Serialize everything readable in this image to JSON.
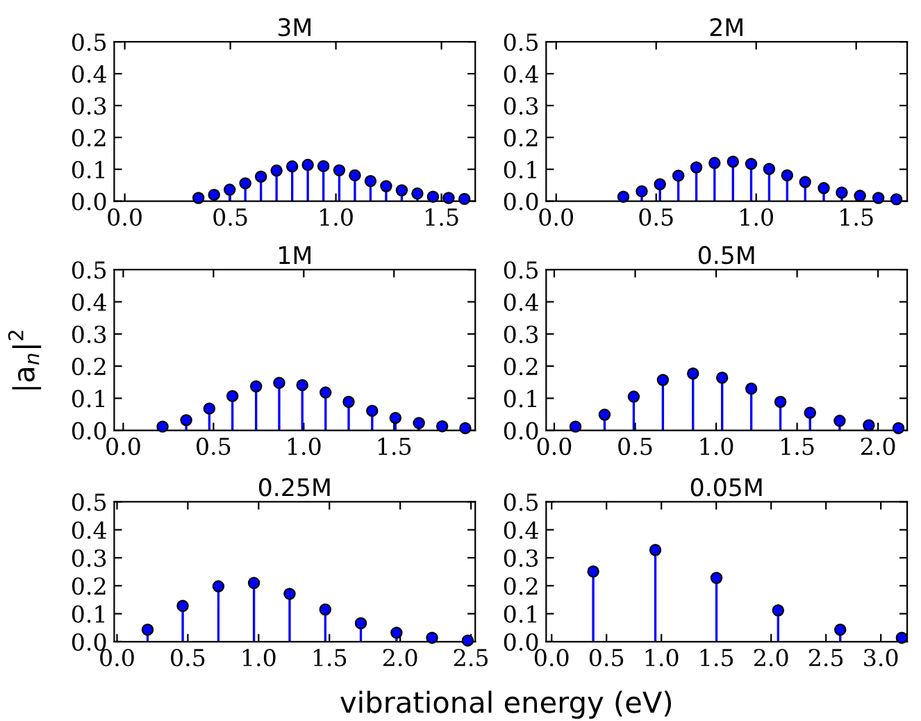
{
  "chart_data": [
    {
      "type": "lollipop",
      "title": "3M",
      "marker": "circle",
      "color": "#0000ff",
      "xlim": [
        -0.05,
        1.66
      ],
      "ylim": [
        0,
        0.5
      ],
      "xticks": [
        {
          "value": 0,
          "label": "0.0"
        },
        {
          "value": 0.5,
          "label": "0.5"
        },
        {
          "value": 1,
          "label": "1.0"
        },
        {
          "value": 1.5,
          "label": "1.5"
        }
      ],
      "yticks": [
        {
          "value": 0,
          "label": "0.0"
        },
        {
          "value": 0.1,
          "label": "0.1"
        },
        {
          "value": 0.2,
          "label": "0.2"
        },
        {
          "value": 0.3,
          "label": "0.3"
        },
        {
          "value": 0.4,
          "label": "0.4"
        },
        {
          "value": 0.5,
          "label": "0.5"
        }
      ],
      "x": [
        0.349,
        0.423,
        0.497,
        0.571,
        0.645,
        0.719,
        0.793,
        0.867,
        0.941,
        1.016,
        1.09,
        1.164,
        1.238,
        1.312,
        1.386,
        1.46,
        1.534,
        1.609
      ],
      "values": [
        0.01,
        0.02,
        0.036,
        0.056,
        0.077,
        0.096,
        0.109,
        0.114,
        0.11,
        0.097,
        0.081,
        0.063,
        0.047,
        0.034,
        0.024,
        0.014,
        0.01,
        0.007
      ]
    },
    {
      "type": "lollipop",
      "title": "2M",
      "marker": "circle",
      "color": "#0000ff",
      "xlim": [
        -0.05,
        1.755
      ],
      "ylim": [
        0,
        0.5
      ],
      "xticks": [
        {
          "value": 0,
          "label": "0.0"
        },
        {
          "value": 0.5,
          "label": "0.5"
        },
        {
          "value": 1,
          "label": "1.0"
        },
        {
          "value": 1.5,
          "label": "1.5"
        }
      ],
      "yticks": [
        {
          "value": 0,
          "label": "0.0"
        },
        {
          "value": 0.1,
          "label": "0.1"
        },
        {
          "value": 0.2,
          "label": "0.2"
        },
        {
          "value": 0.3,
          "label": "0.3"
        },
        {
          "value": 0.4,
          "label": "0.4"
        },
        {
          "value": 0.5,
          "label": "0.5"
        }
      ],
      "x": [
        0.336,
        0.428,
        0.519,
        0.611,
        0.701,
        0.792,
        0.884,
        0.975,
        1.065,
        1.155,
        1.245,
        1.338,
        1.428,
        1.519,
        1.611,
        1.701
      ],
      "values": [
        0.014,
        0.031,
        0.053,
        0.08,
        0.106,
        0.12,
        0.124,
        0.117,
        0.101,
        0.081,
        0.06,
        0.041,
        0.027,
        0.017,
        0.01,
        0.006
      ]
    },
    {
      "type": "lollipop",
      "title": "1M",
      "ylabel": "|a$_{n}$|$^{2}$",
      "marker": "circle",
      "color": "#0000ff",
      "xlim": [
        -0.05,
        1.95
      ],
      "ylim": [
        0,
        0.5
      ],
      "xticks": [
        {
          "value": 0,
          "label": "0.0"
        },
        {
          "value": 0.5,
          "label": "0.5"
        },
        {
          "value": 1,
          "label": "1.0"
        },
        {
          "value": 1.5,
          "label": "1.5"
        }
      ],
      "yticks": [
        {
          "value": 0,
          "label": "0.0"
        },
        {
          "value": 0.1,
          "label": "0.1"
        },
        {
          "value": 0.2,
          "label": "0.2"
        },
        {
          "value": 0.3,
          "label": "0.3"
        },
        {
          "value": 0.4,
          "label": "0.4"
        },
        {
          "value": 0.5,
          "label": "0.5"
        }
      ],
      "x": [
        0.218,
        0.349,
        0.477,
        0.605,
        0.736,
        0.864,
        0.992,
        1.121,
        1.249,
        1.379,
        1.508,
        1.638,
        1.767,
        1.895
      ],
      "values": [
        0.012,
        0.032,
        0.068,
        0.107,
        0.137,
        0.148,
        0.141,
        0.118,
        0.089,
        0.061,
        0.039,
        0.023,
        0.013,
        0.007
      ]
    },
    {
      "type": "lollipop",
      "title": "0.5M",
      "marker": "circle",
      "color": "#0000ff",
      "xlim": [
        -0.05,
        2.18
      ],
      "ylim": [
        0,
        0.5
      ],
      "xticks": [
        {
          "value": 0,
          "label": "0.0"
        },
        {
          "value": 0.5,
          "label": "0.5"
        },
        {
          "value": 1,
          "label": "1.0"
        },
        {
          "value": 1.5,
          "label": "1.5"
        },
        {
          "value": 2,
          "label": "2.0"
        }
      ],
      "yticks": [
        {
          "value": 0,
          "label": "0.0"
        },
        {
          "value": 0.1,
          "label": "0.1"
        },
        {
          "value": 0.2,
          "label": "0.2"
        },
        {
          "value": 0.3,
          "label": "0.3"
        },
        {
          "value": 0.4,
          "label": "0.4"
        },
        {
          "value": 0.5,
          "label": "0.5"
        }
      ],
      "x": [
        0.131,
        0.311,
        0.491,
        0.671,
        0.857,
        1.037,
        1.217,
        1.397,
        1.58,
        1.763,
        1.943,
        2.126
      ],
      "values": [
        0.012,
        0.049,
        0.105,
        0.157,
        0.177,
        0.164,
        0.13,
        0.089,
        0.055,
        0.03,
        0.016,
        0.007
      ]
    },
    {
      "type": "lollipop",
      "title": "0.25M",
      "xlabel": "vibrational energy (eV)",
      "marker": "circle",
      "color": "#0000ff",
      "xlim": [
        -0.02,
        2.53
      ],
      "ylim": [
        0,
        0.5
      ],
      "xticks": [
        {
          "value": 0,
          "label": "0.0"
        },
        {
          "value": 0.5,
          "label": "0.5"
        },
        {
          "value": 1,
          "label": "1.0"
        },
        {
          "value": 1.5,
          "label": "1.5"
        },
        {
          "value": 2,
          "label": "2.0"
        },
        {
          "value": 2.5,
          "label": "2.5"
        }
      ],
      "yticks": [
        {
          "value": 0,
          "label": "0.0"
        },
        {
          "value": 0.1,
          "label": "0.1"
        },
        {
          "value": 0.2,
          "label": "0.2"
        },
        {
          "value": 0.3,
          "label": "0.3"
        },
        {
          "value": 0.4,
          "label": "0.4"
        },
        {
          "value": 0.5,
          "label": "0.5"
        }
      ],
      "x": [
        0.216,
        0.464,
        0.716,
        0.967,
        1.219,
        1.471,
        1.722,
        1.974,
        2.225,
        2.477
      ],
      "values": [
        0.043,
        0.128,
        0.198,
        0.21,
        0.171,
        0.115,
        0.066,
        0.032,
        0.014,
        0.004
      ]
    },
    {
      "type": "lollipop",
      "title": "0.05M",
      "marker": "circle",
      "color": "#0000ff",
      "xlim": [
        -0.05,
        3.24
      ],
      "ylim": [
        0,
        0.5
      ],
      "xticks": [
        {
          "value": 0,
          "label": "0.0"
        },
        {
          "value": 0.5,
          "label": "0.5"
        },
        {
          "value": 1,
          "label": "1.0"
        },
        {
          "value": 1.5,
          "label": "1.5"
        },
        {
          "value": 2,
          "label": "2.0"
        },
        {
          "value": 2.5,
          "label": "2.5"
        },
        {
          "value": 3,
          "label": "3.0"
        }
      ],
      "yticks": [
        {
          "value": 0,
          "label": "0.0"
        },
        {
          "value": 0.1,
          "label": "0.1"
        },
        {
          "value": 0.2,
          "label": "0.2"
        },
        {
          "value": 0.3,
          "label": "0.3"
        },
        {
          "value": 0.4,
          "label": "0.4"
        },
        {
          "value": 0.5,
          "label": "0.5"
        }
      ],
      "x": [
        0.379,
        0.945,
        1.502,
        2.064,
        2.63,
        3.191
      ],
      "values": [
        0.251,
        0.328,
        0.228,
        0.112,
        0.043,
        0.014
      ]
    }
  ]
}
